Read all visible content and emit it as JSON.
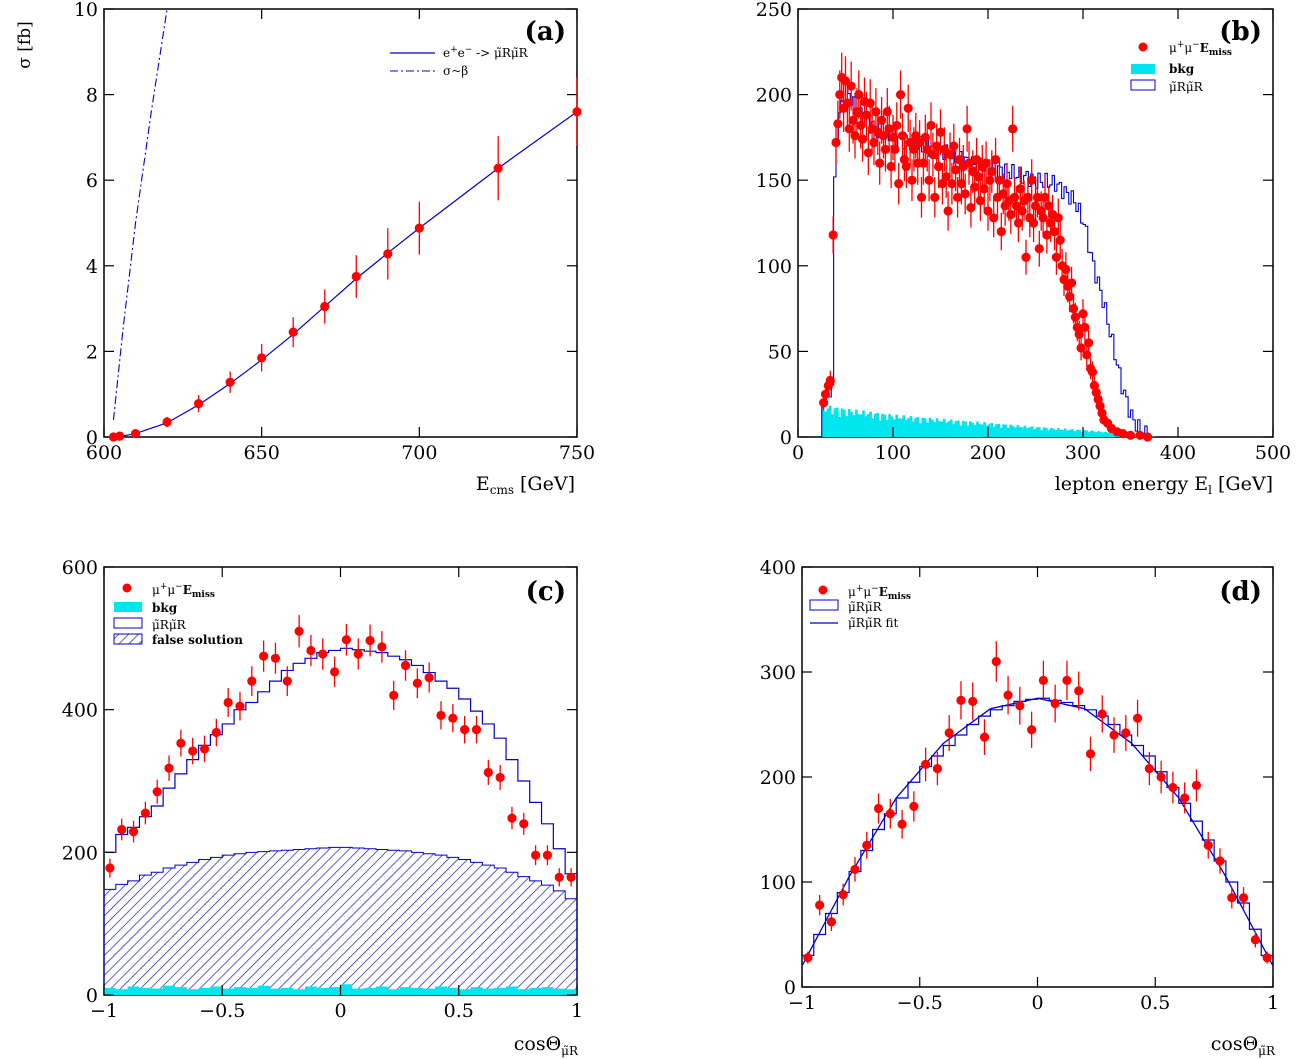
{
  "colors": {
    "data": "#ff0000",
    "mc": "#0000cc",
    "bkg": "#00e5ee",
    "axis": "#000000"
  },
  "chart_data": [
    {
      "id": "a",
      "type": "line",
      "panel_label": "(a)",
      "xlabel": "E_cms  [GeV]",
      "ylabel": "σ  [fb]",
      "xlim": [
        600,
        750
      ],
      "ylim": [
        0,
        10
      ],
      "xticks": [
        600,
        650,
        700,
        750
      ],
      "yticks": [
        0,
        2,
        4,
        6,
        8,
        10
      ],
      "legend": {
        "placement": "top-right",
        "entries": [
          "e+e- -> μ̃Rμ̃R",
          "σ~β"
        ]
      },
      "series": [
        {
          "name": "e+e- -> μ̃Rμ̃R",
          "style": "solid",
          "x": [
            603,
            605,
            610,
            620,
            630,
            640,
            650,
            660,
            670,
            680,
            690,
            700,
            725,
            750
          ],
          "y": [
            0.0,
            0.01,
            0.08,
            0.33,
            0.75,
            1.25,
            1.8,
            2.4,
            3.05,
            3.7,
            4.3,
            4.88,
            6.28,
            7.6
          ]
        },
        {
          "name": "σ~β",
          "style": "dashdot",
          "x": [
            603,
            606,
            610,
            615,
            620
          ],
          "y": [
            0.4,
            2.5,
            5.0,
            7.6,
            10.0
          ]
        },
        {
          "name": "data",
          "style": "points",
          "x": [
            603,
            605,
            610,
            620,
            630,
            640,
            650,
            660,
            670,
            680,
            690,
            700,
            725,
            750
          ],
          "y": [
            0.0,
            0.02,
            0.08,
            0.35,
            0.78,
            1.28,
            1.85,
            2.45,
            3.05,
            3.75,
            4.28,
            4.88,
            6.28,
            7.6
          ],
          "err": [
            0.03,
            0.03,
            0.06,
            0.12,
            0.2,
            0.25,
            0.32,
            0.35,
            0.4,
            0.5,
            0.6,
            0.62,
            0.75,
            0.8
          ]
        }
      ]
    },
    {
      "id": "b",
      "type": "histogram",
      "panel_label": "(b)",
      "xlabel": "lepton energy E_l  [GeV]",
      "xlim": [
        0,
        500
      ],
      "ylim": [
        0,
        250
      ],
      "xticks": [
        0,
        100,
        200,
        300,
        400,
        500
      ],
      "yticks": [
        0,
        50,
        100,
        150,
        200,
        250
      ],
      "legend": {
        "placement": "top-right",
        "entries": [
          "μ+μ-E_miss",
          "bkg",
          "μ̃Rμ̃R"
        ]
      },
      "mc_shape": {
        "x": [
          25,
          35,
          38,
          45,
          50,
          60,
          80,
          100,
          130,
          160,
          190,
          220,
          250,
          270,
          290,
          300,
          310,
          320,
          330,
          340,
          350,
          360,
          370
        ],
        "y": [
          20,
          30,
          172,
          195,
          205,
          190,
          180,
          175,
          170,
          165,
          158,
          155,
          150,
          148,
          138,
          125,
          100,
          80,
          55,
          30,
          12,
          3,
          0
        ]
      },
      "bkg_shape": {
        "x": [
          25,
          50,
          100,
          150,
          200,
          250,
          300,
          350,
          375
        ],
        "y": [
          16,
          14,
          11,
          9,
          7,
          5,
          3.5,
          1.5,
          0
        ]
      },
      "data_points": [
        [
          27,
          20
        ],
        [
          29,
          25
        ],
        [
          32,
          30
        ],
        [
          34,
          33
        ],
        [
          37,
          118
        ],
        [
          40,
          172
        ],
        [
          42,
          183
        ],
        [
          44,
          200
        ],
        [
          46,
          210
        ],
        [
          48,
          192
        ],
        [
          50,
          208
        ],
        [
          52,
          195
        ],
        [
          54,
          180
        ],
        [
          56,
          205
        ],
        [
          58,
          185
        ],
        [
          60,
          176
        ],
        [
          62,
          190
        ],
        [
          64,
          200
        ],
        [
          66,
          182
        ],
        [
          68,
          174
        ],
        [
          70,
          196
        ],
        [
          72,
          188
        ],
        [
          74,
          166
        ],
        [
          76,
          195
        ],
        [
          78,
          180
        ],
        [
          80,
          172
        ],
        [
          82,
          190
        ],
        [
          84,
          178
        ],
        [
          86,
          160
        ],
        [
          88,
          185
        ],
        [
          90,
          176
        ],
        [
          92,
          168
        ],
        [
          94,
          190
        ],
        [
          96,
          180
        ],
        [
          98,
          158
        ],
        [
          100,
          175
        ],
        [
          102,
          168
        ],
        [
          104,
          182
        ],
        [
          106,
          148
        ],
        [
          108,
          200
        ],
        [
          110,
          176
        ],
        [
          112,
          162
        ],
        [
          114,
          158
        ],
        [
          116,
          192
        ],
        [
          118,
          172
        ],
        [
          120,
          150
        ],
        [
          122,
          168
        ],
        [
          124,
          176
        ],
        [
          126,
          160
        ],
        [
          128,
          172
        ],
        [
          130,
          140
        ],
        [
          132,
          160
        ],
        [
          134,
          175
        ],
        [
          136,
          168
        ],
        [
          138,
          150
        ],
        [
          140,
          182
        ],
        [
          142,
          165
        ],
        [
          144,
          140
        ],
        [
          146,
          170
        ],
        [
          148,
          158
        ],
        [
          150,
          178
        ],
        [
          152,
          148
        ],
        [
          154,
          168
        ],
        [
          156,
          152
        ],
        [
          158,
          132
        ],
        [
          160,
          165
        ],
        [
          162,
          148
        ],
        [
          164,
          170
        ],
        [
          166,
          156
        ],
        [
          168,
          140
        ],
        [
          170,
          162
        ],
        [
          172,
          148
        ],
        [
          174,
          158
        ],
        [
          176,
          142
        ],
        [
          178,
          180
        ],
        [
          180,
          160
        ],
        [
          182,
          134
        ],
        [
          184,
          155
        ],
        [
          186,
          146
        ],
        [
          188,
          162
        ],
        [
          190,
          152
        ],
        [
          192,
          138
        ],
        [
          194,
          158
        ],
        [
          196,
          145
        ],
        [
          198,
          160
        ],
        [
          200,
          132
        ],
        [
          202,
          150
        ],
        [
          204,
          155
        ],
        [
          206,
          128
        ],
        [
          208,
          162
        ],
        [
          210,
          140
        ],
        [
          212,
          150
        ],
        [
          214,
          120
        ],
        [
          216,
          142
        ],
        [
          218,
          135
        ],
        [
          220,
          148
        ],
        [
          222,
          138
        ],
        [
          224,
          130
        ],
        [
          226,
          180
        ],
        [
          228,
          140
        ],
        [
          230,
          135
        ],
        [
          232,
          125
        ],
        [
          234,
          145
        ],
        [
          236,
          132
        ],
        [
          238,
          138
        ],
        [
          240,
          105
        ],
        [
          242,
          140
        ],
        [
          244,
          128
        ],
        [
          246,
          150
        ],
        [
          248,
          125
        ],
        [
          250,
          135
        ],
        [
          252,
          140
        ],
        [
          254,
          110
        ],
        [
          256,
          132
        ],
        [
          258,
          128
        ],
        [
          260,
          140
        ],
        [
          262,
          118
        ],
        [
          264,
          135
        ],
        [
          266,
          125
        ],
        [
          268,
          130
        ],
        [
          270,
          120
        ],
        [
          272,
          105
        ],
        [
          274,
          128
        ],
        [
          276,
          115
        ],
        [
          278,
          100
        ],
        [
          280,
          92
        ],
        [
          282,
          98
        ],
        [
          284,
          88
        ],
        [
          286,
          82
        ],
        [
          288,
          90
        ],
        [
          290,
          75
        ],
        [
          292,
          70
        ],
        [
          294,
          64
        ],
        [
          296,
          60
        ],
        [
          298,
          52
        ],
        [
          300,
          72
        ],
        [
          302,
          64
        ],
        [
          304,
          48
        ],
        [
          306,
          55
        ],
        [
          308,
          40
        ],
        [
          310,
          38
        ],
        [
          312,
          30
        ],
        [
          314,
          26
        ],
        [
          316,
          22
        ],
        [
          318,
          18
        ],
        [
          320,
          14
        ],
        [
          322,
          10
        ],
        [
          326,
          8
        ],
        [
          330,
          5
        ],
        [
          336,
          3
        ],
        [
          342,
          2
        ],
        [
          350,
          1
        ],
        [
          360,
          1
        ],
        [
          368,
          0
        ]
      ]
    },
    {
      "id": "c",
      "type": "histogram",
      "panel_label": "(c)",
      "xlabel": "cosΘ_μ̃R",
      "xlim": [
        -1,
        1
      ],
      "ylim": [
        0,
        600
      ],
      "xticks": [
        -1,
        -0.5,
        0,
        0.5,
        1
      ],
      "xtick_labels": [
        "−1",
        "−0.5",
        "0",
        "0.5",
        "1"
      ],
      "yticks": [
        0,
        200,
        400,
        600
      ],
      "legend": {
        "placement": "top-left",
        "entries": [
          "μ+μ-E_miss",
          "bkg",
          "μ̃Rμ̃R",
          "false solution"
        ]
      },
      "bin_edges_n": 40,
      "mc_hist": [
        200,
        225,
        235,
        250,
        265,
        290,
        310,
        330,
        350,
        365,
        380,
        400,
        410,
        425,
        440,
        455,
        465,
        472,
        480,
        483,
        486,
        484,
        482,
        480,
        475,
        470,
        462,
        452,
        440,
        430,
        415,
        398,
        380,
        360,
        330,
        300,
        270,
        240,
        205,
        170
      ],
      "false_hist": [
        148,
        155,
        160,
        168,
        172,
        178,
        182,
        186,
        190,
        193,
        196,
        198,
        200,
        201,
        202,
        203,
        204,
        205,
        206,
        207,
        207,
        206,
        205,
        204,
        203,
        202,
        200,
        198,
        196,
        193,
        190,
        186,
        182,
        178,
        172,
        166,
        160,
        154,
        146,
        135
      ],
      "bkg_hist": [
        10,
        8,
        12,
        10,
        9,
        13,
        11,
        8,
        10,
        12,
        9,
        11,
        10,
        13,
        9,
        10,
        8,
        12,
        10,
        11,
        15,
        9,
        10,
        12,
        8,
        11,
        10,
        9,
        12,
        10,
        8,
        11,
        9,
        10,
        12,
        8,
        10,
        11,
        9,
        8
      ],
      "data_points": [
        [
          -0.975,
          178
        ],
        [
          -0.925,
          232
        ],
        [
          -0.875,
          229
        ],
        [
          -0.825,
          255
        ],
        [
          -0.775,
          285
        ],
        [
          -0.725,
          318
        ],
        [
          -0.675,
          353
        ],
        [
          -0.625,
          342
        ],
        [
          -0.575,
          345
        ],
        [
          -0.525,
          368
        ],
        [
          -0.475,
          410
        ],
        [
          -0.425,
          405
        ],
        [
          -0.375,
          440
        ],
        [
          -0.325,
          475
        ],
        [
          -0.275,
          472
        ],
        [
          -0.225,
          440
        ],
        [
          -0.175,
          510
        ],
        [
          -0.125,
          483
        ],
        [
          -0.075,
          478
        ],
        [
          -0.025,
          453
        ],
        [
          0.025,
          498
        ],
        [
          0.075,
          478
        ],
        [
          0.125,
          497
        ],
        [
          0.175,
          488
        ],
        [
          0.225,
          420
        ],
        [
          0.275,
          462
        ],
        [
          0.325,
          437
        ],
        [
          0.375,
          445
        ],
        [
          0.425,
          392
        ],
        [
          0.475,
          388
        ],
        [
          0.525,
          372
        ],
        [
          0.575,
          372
        ],
        [
          0.625,
          312
        ],
        [
          0.675,
          305
        ],
        [
          0.725,
          248
        ],
        [
          0.775,
          240
        ],
        [
          0.825,
          196
        ],
        [
          0.875,
          196
        ],
        [
          0.925,
          165
        ],
        [
          0.975,
          165
        ]
      ]
    },
    {
      "id": "d",
      "type": "histogram",
      "panel_label": "(d)",
      "xlabel": "cosΘ_μ̃R",
      "xlim": [
        -1,
        1
      ],
      "ylim": [
        0,
        400
      ],
      "xticks": [
        -1,
        -0.5,
        0,
        0.5,
        1
      ],
      "xtick_labels": [
        "−1",
        "−0.5",
        "0",
        "0.5",
        "1"
      ],
      "yticks": [
        0,
        100,
        200,
        300,
        400
      ],
      "legend": {
        "placement": "top-left",
        "entries": [
          "μ+μ-E_miss",
          "μ̃Rμ̃R",
          "μ̃Rμ̃R fit"
        ]
      },
      "bin_edges_n": 40,
      "mc_hist": [
        30,
        50,
        70,
        90,
        110,
        130,
        150,
        165,
        180,
        195,
        210,
        220,
        230,
        240,
        250,
        258,
        264,
        268,
        272,
        274,
        275,
        273,
        271,
        268,
        264,
        258,
        250,
        240,
        230,
        220,
        205,
        190,
        175,
        158,
        140,
        120,
        100,
        80,
        55,
        30
      ],
      "fit": {
        "x": [
          -1,
          -0.8,
          -0.6,
          -0.4,
          -0.2,
          0,
          0.2,
          0.4,
          0.6,
          0.8,
          1
        ],
        "y": [
          20,
          105,
          180,
          232,
          265,
          275,
          265,
          232,
          180,
          105,
          20
        ]
      },
      "data_points": [
        [
          -0.975,
          28
        ],
        [
          -0.925,
          78
        ],
        [
          -0.875,
          62
        ],
        [
          -0.825,
          88
        ],
        [
          -0.775,
          112
        ],
        [
          -0.725,
          135
        ],
        [
          -0.675,
          170
        ],
        [
          -0.625,
          165
        ],
        [
          -0.575,
          155
        ],
        [
          -0.525,
          172
        ],
        [
          -0.475,
          212
        ],
        [
          -0.425,
          208
        ],
        [
          -0.375,
          242
        ],
        [
          -0.325,
          273
        ],
        [
          -0.275,
          272
        ],
        [
          -0.225,
          238
        ],
        [
          -0.175,
          310
        ],
        [
          -0.125,
          278
        ],
        [
          -0.075,
          268
        ],
        [
          -0.025,
          245
        ],
        [
          0.025,
          292
        ],
        [
          0.075,
          270
        ],
        [
          0.125,
          292
        ],
        [
          0.175,
          282
        ],
        [
          0.225,
          222
        ],
        [
          0.275,
          260
        ],
        [
          0.325,
          240
        ],
        [
          0.375,
          242
        ],
        [
          0.425,
          256
        ],
        [
          0.475,
          208
        ],
        [
          0.525,
          200
        ],
        [
          0.575,
          190
        ],
        [
          0.625,
          180
        ],
        [
          0.675,
          192
        ],
        [
          0.725,
          135
        ],
        [
          0.775,
          120
        ],
        [
          0.825,
          85
        ],
        [
          0.875,
          85
        ],
        [
          0.925,
          45
        ],
        [
          0.975,
          28
        ]
      ]
    }
  ]
}
